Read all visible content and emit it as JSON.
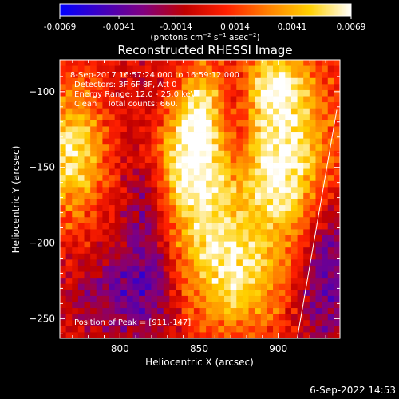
{
  "chart_data": {
    "type": "heatmap",
    "title": "Reconstructed RHESSI Image",
    "xlabel": "Heliocentric X (arcsec)",
    "ylabel": "Heliocentric Y (arcsec)",
    "xlim": [
      762,
      939
    ],
    "ylim": [
      -263,
      -79
    ],
    "x_ticks": [
      800,
      850,
      900
    ],
    "y_ticks": [
      -100,
      -150,
      -200,
      -250
    ],
    "colorbar": {
      "range": [
        -0.0069,
        0.0069
      ],
      "ticks": [
        "-0.0069",
        "-0.0041",
        "-0.0014",
        "0.0014",
        "0.0041",
        "0.0069"
      ],
      "unit_label": "(photons cm-2 s-1 asec-2)",
      "colormap": [
        "#0000ff",
        "#4000c0",
        "#800080",
        "#c00000",
        "#ff2000",
        "#ff8000",
        "#ffd000",
        "#ffffff"
      ]
    },
    "annotations": {
      "time_range": "8-Sep-2017 16:57:24.000 to 16:59:12.000",
      "detectors": "Detectors: 3F 6F 8F, Att 0",
      "energy": "Energy Range: 12.0 - 25.0 keV",
      "clean": "Clean    Total counts: 660.",
      "peak": "Position of Peak = [911,-147]"
    },
    "peak": {
      "x": 911,
      "y": -147
    },
    "sources": [
      {
        "x": 770,
        "y": -140,
        "sx": 14,
        "sy": 30,
        "amp": 0.0058
      },
      {
        "x": 840,
        "y": -145,
        "sx": 18,
        "sy": 28,
        "amp": 0.0066
      },
      {
        "x": 852,
        "y": -110,
        "sx": 8,
        "sy": 22,
        "amp": 0.004
      },
      {
        "x": 858,
        "y": -205,
        "sx": 20,
        "sy": 32,
        "amp": 0.0046
      },
      {
        "x": 905,
        "y": -150,
        "sx": 22,
        "sy": 40,
        "amp": 0.0069
      },
      {
        "x": 898,
        "y": -95,
        "sx": 14,
        "sy": 18,
        "amp": 0.0045
      },
      {
        "x": 880,
        "y": -230,
        "sx": 18,
        "sy": 22,
        "amp": 0.003
      },
      {
        "x": 818,
        "y": -170,
        "sx": 12,
        "sy": 48,
        "amp": -0.004
      },
      {
        "x": 800,
        "y": -235,
        "sx": 25,
        "sy": 22,
        "amp": -0.0032
      },
      {
        "x": 930,
        "y": -215,
        "sx": 14,
        "sy": 42,
        "amp": -0.0046
      },
      {
        "x": 875,
        "y": -120,
        "sx": 8,
        "sy": 28,
        "amp": -0.002
      }
    ],
    "limb_line": {
      "x": [
        912,
        937
      ],
      "y": [
        -263,
        -112
      ]
    },
    "grid": false,
    "legend": "none"
  },
  "footer_date": "6-Sep-2022 14:53"
}
